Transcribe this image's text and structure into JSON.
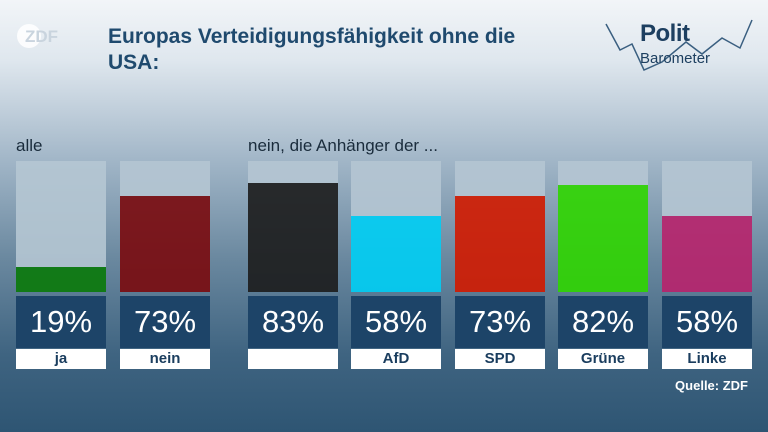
{
  "header": {
    "logo_text": "ZDF",
    "title": "Europas Verteidigungsfähigkeit ohne die USA:",
    "brand_line1": "Polit",
    "brand_line2": "Barometer"
  },
  "groups": {
    "all_label": "alle",
    "supporters_label": "nein, die Anhänger der ..."
  },
  "source": "Quelle: ZDF",
  "chart_data": {
    "type": "bar",
    "title": "Europas Verteidigungsfähigkeit ohne die USA:",
    "ylim": [
      0,
      100
    ],
    "grid": false,
    "categories": [
      "ja",
      "nein",
      "",
      "AfD",
      "SPD",
      "Grüne",
      "Linke"
    ],
    "values": [
      19,
      73,
      83,
      58,
      73,
      82,
      58
    ],
    "value_labels": [
      "19%",
      "73%",
      "83%",
      "58%",
      "73%",
      "82%",
      "58%"
    ],
    "colors": [
      "#0a7a0a",
      "#7a0a0e",
      "#1c1c1c",
      "#00cff5",
      "#d21a00",
      "#2fd600",
      "#b8236c"
    ]
  }
}
